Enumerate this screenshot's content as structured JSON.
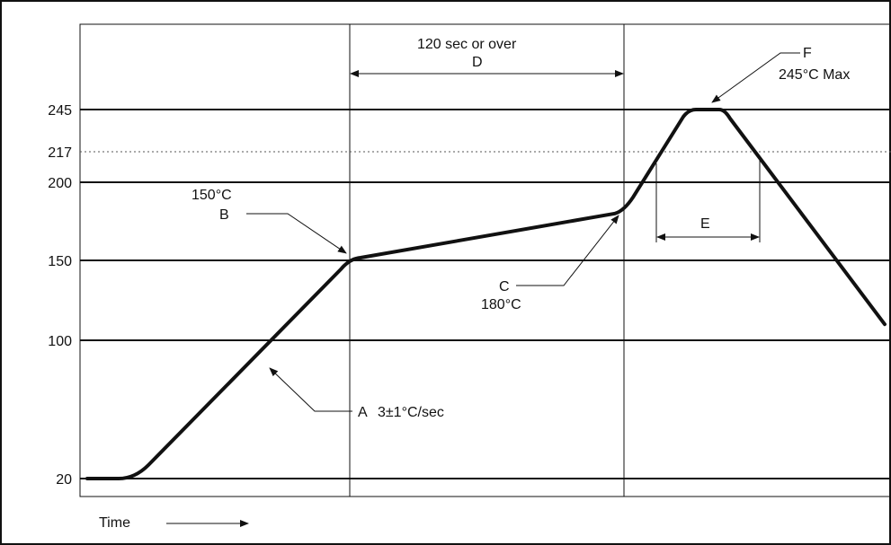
{
  "chart_data": {
    "type": "line",
    "title": "",
    "xlabel": "Time",
    "ylabel": "",
    "y_ticks": [
      20,
      100,
      150,
      200,
      217,
      245
    ],
    "tick_labels": [
      "20",
      "100",
      "150",
      "200",
      "217",
      "245"
    ],
    "dotted_reference_line": 217,
    "grid": true,
    "series": [
      {
        "values": [
          20,
          20,
          150,
          180,
          245,
          245,
          110
        ]
      }
    ],
    "annotations": {
      "a_letter": "A",
      "a_text": "3±1°C/sec",
      "b_temp": "150°C",
      "b_letter": "B",
      "c_letter": "C",
      "c_temp": "180°C",
      "d_text": "120 sec or over",
      "d_letter": "D",
      "e_letter": "E",
      "f_letter": "F",
      "f_text": "245°C   Max"
    }
  },
  "colors": {
    "curve": "#111111",
    "grid": "#111111",
    "dotted": "#555555"
  }
}
